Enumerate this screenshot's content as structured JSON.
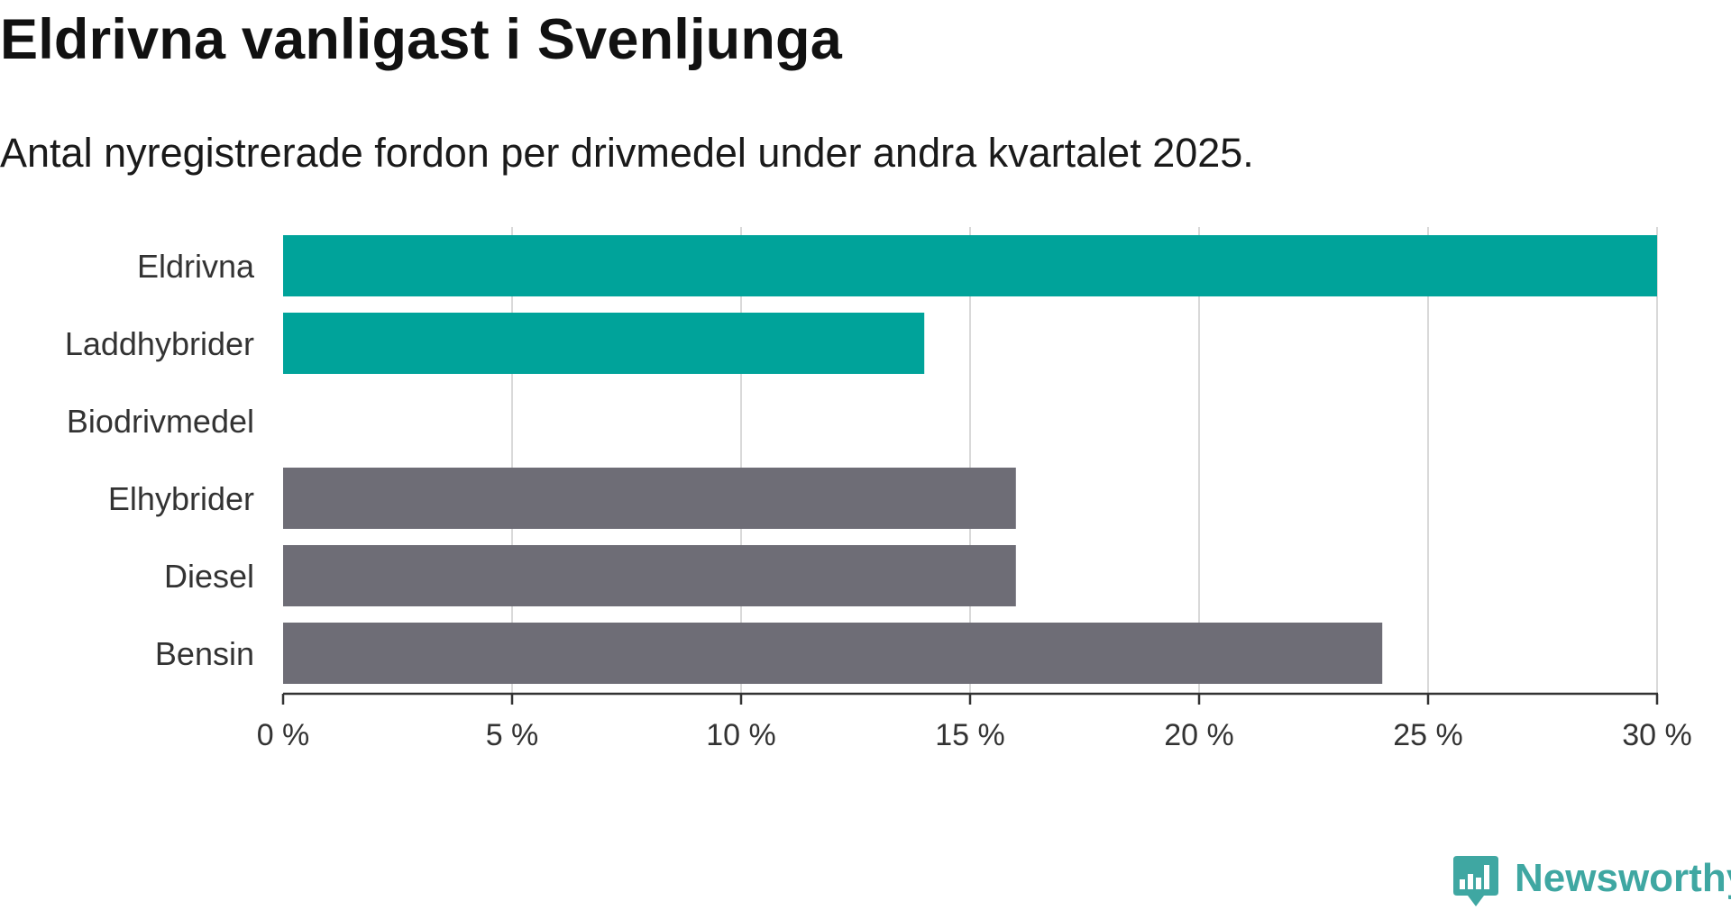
{
  "header": {
    "title": "Eldrivna vanligast i Svenljunga",
    "subtitle": "Antal nyregistrerade fordon per drivmedel under andra kvartalet 2025."
  },
  "brand": {
    "name": "Newsworthy",
    "color": "#3fa7a2",
    "icon": "newsworthy-bar-chart-icon"
  },
  "chart_data": {
    "type": "bar",
    "orientation": "horizontal",
    "categories": [
      "Eldrivna",
      "Laddhybrider",
      "Biodrivmedel",
      "Elhybrider",
      "Diesel",
      "Bensin"
    ],
    "values": [
      30,
      14,
      0,
      16,
      16,
      24
    ],
    "bar_colors": [
      "#00a39a",
      "#00a39a",
      "#00a39a",
      "#6e6d76",
      "#6e6d76",
      "#6e6d76"
    ],
    "xlim": [
      0,
      30
    ],
    "xticks": [
      0,
      5,
      10,
      15,
      20,
      25,
      30
    ],
    "xtick_labels": [
      "0 %",
      "5 %",
      "10 %",
      "15 %",
      "20 %",
      "25 %",
      "30 %"
    ],
    "grid": "vertical",
    "legend": "none",
    "xlabel": "",
    "ylabel": ""
  }
}
